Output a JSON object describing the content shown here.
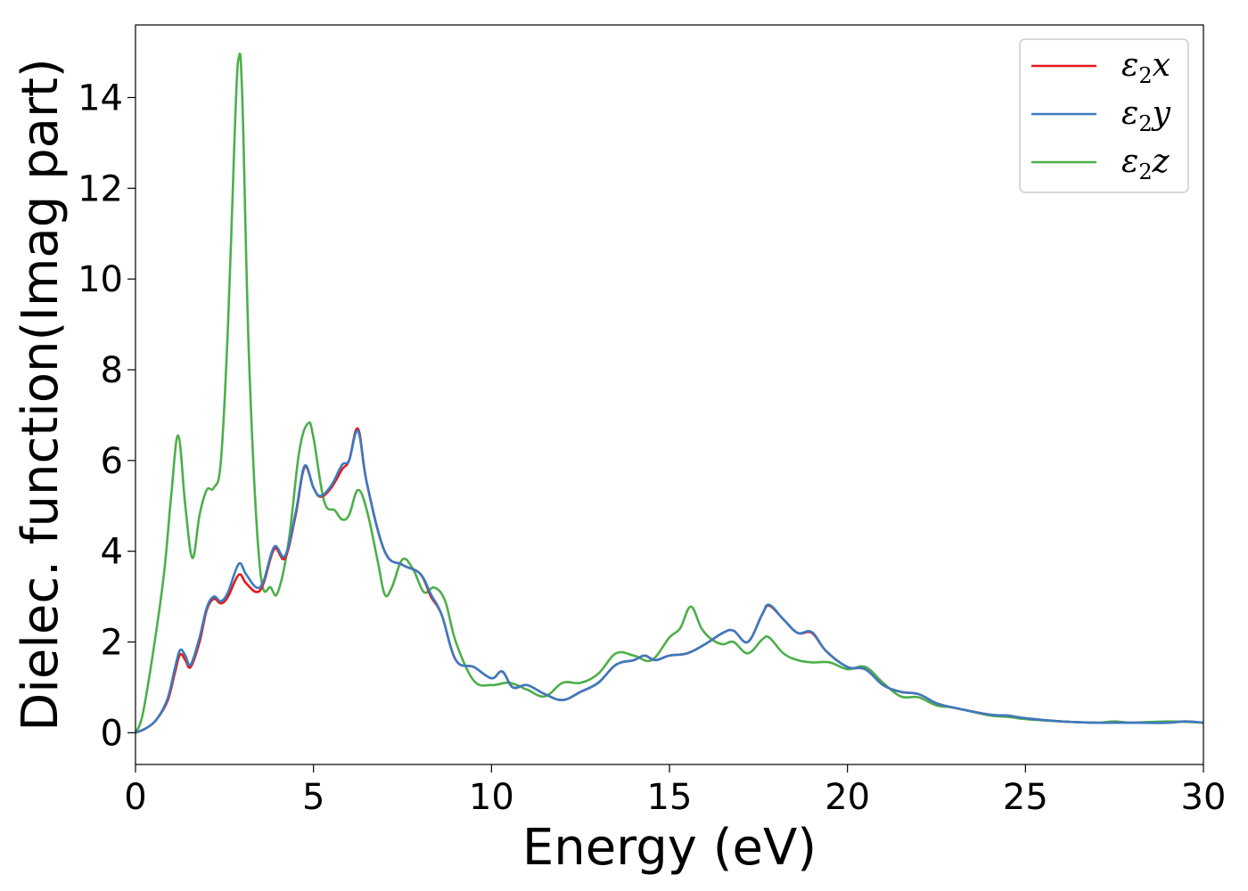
{
  "chart_data": {
    "type": "line",
    "xlabel": "Energy (eV)",
    "ylabel": "Dielec. function(Imag part)",
    "xlim": [
      0,
      30
    ],
    "ylim": [
      -0.7,
      15.6
    ],
    "xticks": [
      0,
      5,
      10,
      15,
      20,
      25,
      30
    ],
    "yticks": [
      0,
      2,
      4,
      6,
      8,
      10,
      12,
      14
    ],
    "grid": false,
    "legend_position": "top-right",
    "series": [
      {
        "name": "ε2x",
        "label_base": "ε",
        "label_sub": "2",
        "label_suffix": "x",
        "color": "#e41a1c",
        "x": [
          0,
          0.3,
          0.6,
          0.9,
          1.1,
          1.25,
          1.4,
          1.55,
          1.8,
          2.0,
          2.2,
          2.4,
          2.6,
          2.9,
          3.1,
          3.4,
          3.6,
          3.9,
          4.2,
          4.5,
          4.75,
          5.0,
          5.2,
          5.5,
          5.8,
          6.0,
          6.25,
          6.5,
          7.0,
          7.5,
          8.0,
          8.3,
          8.6,
          9.0,
          9.5,
          10.0,
          10.3,
          10.6,
          11.0,
          11.5,
          12.0,
          12.5,
          13.0,
          13.5,
          14.0,
          14.3,
          14.6,
          15.0,
          15.5,
          16.0,
          16.5,
          16.8,
          17.2,
          17.6,
          17.8,
          18.2,
          18.6,
          19.0,
          19.4,
          20.0,
          20.5,
          21.0,
          21.5,
          22.0,
          22.5,
          23.0,
          24.0,
          24.5,
          25.0,
          26.0,
          27.0,
          27.5,
          28.0,
          29.0,
          29.5,
          30.0
        ],
        "values": [
          0.0,
          0.1,
          0.3,
          0.7,
          1.3,
          1.72,
          1.6,
          1.45,
          2.0,
          2.7,
          2.95,
          2.85,
          3.0,
          3.48,
          3.3,
          3.1,
          3.3,
          4.05,
          3.85,
          4.8,
          5.85,
          5.4,
          5.2,
          5.4,
          5.8,
          6.0,
          6.7,
          5.5,
          4.0,
          3.7,
          3.5,
          3.0,
          2.6,
          1.6,
          1.45,
          1.2,
          1.35,
          1.0,
          1.05,
          0.85,
          0.72,
          0.9,
          1.1,
          1.5,
          1.6,
          1.7,
          1.6,
          1.7,
          1.75,
          1.95,
          2.2,
          2.25,
          2.0,
          2.6,
          2.8,
          2.5,
          2.2,
          2.2,
          1.8,
          1.45,
          1.4,
          1.05,
          0.9,
          0.85,
          0.65,
          0.55,
          0.4,
          0.38,
          0.32,
          0.25,
          0.22,
          0.22,
          0.22,
          0.22,
          0.25,
          0.22
        ]
      },
      {
        "name": "ε2y",
        "label_base": "ε",
        "label_sub": "2",
        "label_suffix": "y",
        "color": "#3a7bbf",
        "x": [
          0,
          0.3,
          0.6,
          0.9,
          1.1,
          1.25,
          1.4,
          1.55,
          1.8,
          2.0,
          2.2,
          2.4,
          2.6,
          2.9,
          3.1,
          3.4,
          3.6,
          3.9,
          4.2,
          4.5,
          4.75,
          5.0,
          5.2,
          5.5,
          5.8,
          6.0,
          6.25,
          6.5,
          7.0,
          7.5,
          8.0,
          8.3,
          8.6,
          9.0,
          9.5,
          10.0,
          10.3,
          10.6,
          11.0,
          11.5,
          12.0,
          12.5,
          13.0,
          13.5,
          14.0,
          14.3,
          14.6,
          15.0,
          15.5,
          16.0,
          16.5,
          16.8,
          17.2,
          17.6,
          17.8,
          18.2,
          18.6,
          19.0,
          19.4,
          20.0,
          20.5,
          21.0,
          21.5,
          22.0,
          22.5,
          23.0,
          24.0,
          24.5,
          25.0,
          26.0,
          27.0,
          27.5,
          28.0,
          29.0,
          29.5,
          30.0
        ],
        "values": [
          0.0,
          0.1,
          0.3,
          0.75,
          1.4,
          1.82,
          1.7,
          1.5,
          2.1,
          2.75,
          3.0,
          2.9,
          3.1,
          3.72,
          3.5,
          3.2,
          3.35,
          4.1,
          3.9,
          4.85,
          5.88,
          5.4,
          5.22,
          5.45,
          5.9,
          6.0,
          6.65,
          5.5,
          4.0,
          3.7,
          3.5,
          3.05,
          2.6,
          1.6,
          1.45,
          1.2,
          1.35,
          1.0,
          1.05,
          0.85,
          0.72,
          0.9,
          1.1,
          1.5,
          1.6,
          1.7,
          1.6,
          1.7,
          1.75,
          1.95,
          2.2,
          2.25,
          2.0,
          2.6,
          2.82,
          2.5,
          2.2,
          2.22,
          1.8,
          1.45,
          1.4,
          1.05,
          0.9,
          0.85,
          0.65,
          0.55,
          0.4,
          0.38,
          0.32,
          0.25,
          0.22,
          0.22,
          0.22,
          0.22,
          0.25,
          0.22
        ]
      },
      {
        "name": "ε2z",
        "label_base": "ε",
        "label_sub": "2",
        "label_suffix": "z",
        "color": "#4daf4a",
        "x": [
          0,
          0.2,
          0.5,
          0.8,
          1.0,
          1.2,
          1.4,
          1.6,
          1.8,
          2.0,
          2.2,
          2.4,
          2.6,
          2.8,
          2.9,
          3.0,
          3.2,
          3.5,
          3.8,
          4.0,
          4.3,
          4.6,
          4.85,
          5.0,
          5.3,
          5.6,
          5.8,
          6.0,
          6.25,
          6.5,
          6.8,
          7.0,
          7.2,
          7.5,
          7.8,
          8.1,
          8.4,
          8.7,
          9.0,
          9.5,
          10.0,
          10.5,
          11.0,
          11.5,
          12.0,
          12.5,
          13.0,
          13.5,
          14.0,
          14.5,
          15.0,
          15.3,
          15.6,
          15.9,
          16.2,
          16.5,
          16.8,
          17.2,
          17.6,
          17.8,
          18.2,
          18.6,
          19.0,
          19.5,
          20.0,
          20.5,
          21.0,
          21.5,
          22.0,
          22.5,
          23.0,
          24.0,
          24.5,
          25.0,
          26.0,
          27.0,
          27.5,
          28.0,
          29.0,
          30.0
        ],
        "values": [
          0.0,
          0.4,
          1.8,
          3.5,
          5.2,
          6.55,
          5.0,
          3.85,
          4.8,
          5.35,
          5.4,
          6.0,
          9.0,
          13.5,
          14.88,
          14.0,
          8.0,
          3.6,
          3.2,
          3.1,
          4.2,
          6.2,
          6.82,
          6.5,
          5.1,
          4.9,
          4.7,
          4.8,
          5.35,
          4.9,
          3.8,
          3.05,
          3.2,
          3.82,
          3.6,
          3.1,
          3.2,
          2.9,
          2.0,
          1.15,
          1.05,
          1.1,
          0.95,
          0.8,
          1.1,
          1.1,
          1.3,
          1.75,
          1.7,
          1.6,
          2.1,
          2.3,
          2.78,
          2.3,
          2.05,
          1.95,
          2.0,
          1.75,
          2.05,
          2.1,
          1.75,
          1.6,
          1.55,
          1.55,
          1.4,
          1.45,
          1.1,
          0.8,
          0.78,
          0.6,
          0.55,
          0.38,
          0.35,
          0.3,
          0.25,
          0.22,
          0.25,
          0.22,
          0.25,
          0.22
        ]
      }
    ]
  }
}
